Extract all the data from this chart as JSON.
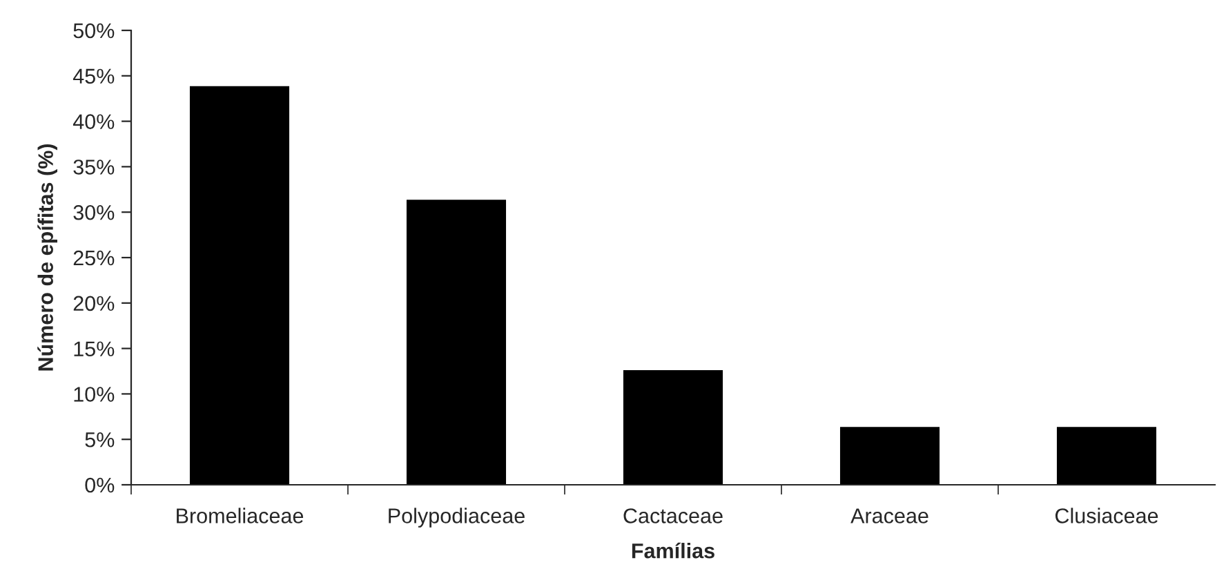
{
  "chart_data": {
    "type": "bar",
    "xlabel": "Famílias",
    "ylabel": "Número de epífitas (%)",
    "categories": [
      "Bromeliaceae",
      "Polypodiaceae",
      "Cactaceae",
      "Araceae",
      "Clusiaceae"
    ],
    "values": [
      43.75,
      31.25,
      12.5,
      6.25,
      6.25
    ],
    "color": "#000000",
    "ylim": [
      0,
      50
    ],
    "yticks": [
      {
        "value": 0,
        "label": "0%"
      },
      {
        "value": 5,
        "label": "5%"
      },
      {
        "value": 10,
        "label": "10%"
      },
      {
        "value": 15,
        "label": "15%"
      },
      {
        "value": 20,
        "label": "20%"
      },
      {
        "value": 25,
        "label": "25%"
      },
      {
        "value": 30,
        "label": "30%"
      },
      {
        "value": 35,
        "label": "35%"
      },
      {
        "value": 40,
        "label": "40%"
      },
      {
        "value": 45,
        "label": "45%"
      },
      {
        "value": 50,
        "label": "50%"
      }
    ],
    "grid": false,
    "legend": false
  }
}
